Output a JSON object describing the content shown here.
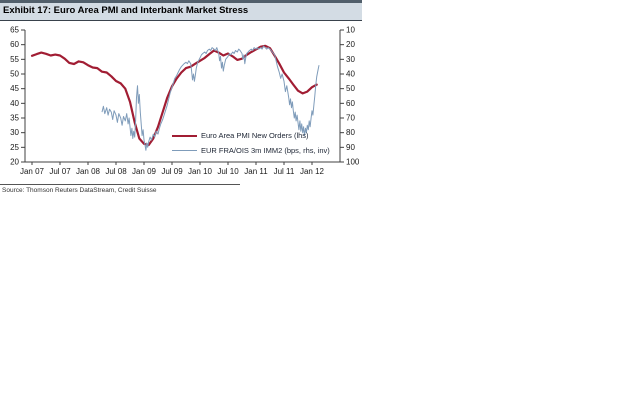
{
  "header": {
    "title": "Exhibit 17: Euro Area PMI and Interbank Market Stress"
  },
  "source": "Source: Thomson Reuters DataStream, Credit Suisse",
  "colors": {
    "pmi_line": "#a11d33",
    "fraois_line": "#7f9cba",
    "axis": "#404040",
    "header_band": "#515f6b",
    "header_bg": "#d3dce4"
  },
  "chart_data": {
    "type": "line",
    "title": "Euro Area PMI and Interbank Market Stress",
    "grid": false,
    "legend_position": "inside-lower-middle",
    "x_axis": {
      "tick_labels": [
        "Jan 07",
        "Jul 07",
        "Jan 08",
        "Jul 08",
        "Jan 09",
        "Jul 09",
        "Jan 10",
        "Jul 10",
        "Jan 11",
        "Jul 11",
        "Jan 12"
      ],
      "tick_month_index": [
        0,
        6,
        12,
        18,
        24,
        30,
        36,
        42,
        48,
        54,
        60
      ]
    },
    "left_axis": {
      "ticks": [
        65,
        60,
        55,
        50,
        45,
        40,
        35,
        30,
        25,
        20
      ],
      "range": [
        20,
        65
      ]
    },
    "right_axis": {
      "ticks": [
        10,
        20,
        30,
        40,
        50,
        60,
        70,
        80,
        90,
        100
      ],
      "range": [
        10,
        100
      ],
      "inverted": true
    },
    "series": [
      {
        "name": "Euro Area PMI New Orders (lhs)",
        "axis": "left",
        "color": "#a11d33",
        "stroke_width": 2.2,
        "start_month": 0,
        "monthly_values": [
          56.2,
          56.8,
          57.3,
          56.9,
          56.3,
          56.6,
          56.3,
          55.2,
          53.8,
          53.4,
          54.3,
          54.0,
          53.0,
          52.2,
          52.0,
          50.8,
          50.5,
          49.2,
          47.6,
          46.8,
          45.0,
          40.5,
          33.5,
          28.0,
          26.2,
          25.8,
          28.0,
          32.0,
          37.0,
          42.0,
          45.8,
          48.5,
          50.5,
          52.0,
          52.5,
          53.5,
          54.5,
          55.5,
          56.8,
          58.0,
          57.3,
          56.3,
          57.0,
          56.0,
          54.8,
          55.2,
          56.5,
          57.5,
          58.4,
          59.3,
          59.6,
          58.8,
          56.2,
          53.5,
          50.5,
          48.5,
          46.4,
          44.3,
          43.4,
          44.0,
          45.5,
          46.4
        ]
      },
      {
        "name": "EUR FRA/OIS 3m IMM2 (bps, rhs, inv)",
        "axis": "right",
        "color": "#7f9cba",
        "stroke_width": 1,
        "points": [
          [
            15,
            66
          ],
          [
            15.3,
            62
          ],
          [
            15.6,
            67
          ],
          [
            16,
            63
          ],
          [
            16.3,
            68
          ],
          [
            16.6,
            64
          ],
          [
            17,
            66
          ],
          [
            17.3,
            71
          ],
          [
            17.6,
            65
          ],
          [
            18,
            68
          ],
          [
            18.3,
            73
          ],
          [
            18.6,
            67
          ],
          [
            19,
            70
          ],
          [
            19.3,
            75
          ],
          [
            19.6,
            69
          ],
          [
            20,
            72
          ],
          [
            20.3,
            67
          ],
          [
            20.6,
            74
          ],
          [
            20.8,
            70
          ],
          [
            21,
            76
          ],
          [
            21.2,
            82
          ],
          [
            21.4,
            77
          ],
          [
            21.6,
            84
          ],
          [
            21.8,
            79
          ],
          [
            22,
            83
          ],
          [
            22.2,
            72
          ],
          [
            22.4,
            56
          ],
          [
            22.6,
            48
          ],
          [
            22.8,
            60
          ],
          [
            23,
            54
          ],
          [
            23.2,
            66
          ],
          [
            23.4,
            74
          ],
          [
            23.6,
            82
          ],
          [
            23.8,
            78
          ],
          [
            24,
            85
          ],
          [
            24.2,
            88
          ],
          [
            24.4,
            92
          ],
          [
            24.6,
            87
          ],
          [
            24.8,
            90
          ],
          [
            25,
            86
          ],
          [
            25.3,
            83
          ],
          [
            25.6,
            85
          ],
          [
            26,
            81
          ],
          [
            26.3,
            83
          ],
          [
            26.6,
            79
          ],
          [
            27,
            81
          ],
          [
            27.3,
            77
          ],
          [
            27.6,
            74
          ],
          [
            28,
            71
          ],
          [
            28.3,
            68
          ],
          [
            28.6,
            65
          ],
          [
            29,
            61
          ],
          [
            29.3,
            57
          ],
          [
            29.6,
            53
          ],
          [
            30,
            49
          ],
          [
            30.3,
            46
          ],
          [
            30.6,
            43
          ],
          [
            31,
            41
          ],
          [
            31.3,
            39
          ],
          [
            31.6,
            37
          ],
          [
            32,
            35
          ],
          [
            32.3,
            34
          ],
          [
            32.6,
            33
          ],
          [
            33,
            32
          ],
          [
            33.3,
            33
          ],
          [
            33.6,
            31
          ],
          [
            34,
            33
          ],
          [
            34.2,
            38
          ],
          [
            34.4,
            44
          ],
          [
            34.6,
            40
          ],
          [
            34.8,
            45
          ],
          [
            35,
            41
          ],
          [
            35.2,
            36
          ],
          [
            35.5,
            32
          ],
          [
            36,
            29
          ],
          [
            36.3,
            27
          ],
          [
            36.6,
            26
          ],
          [
            37,
            25
          ],
          [
            37.3,
            26
          ],
          [
            37.6,
            24
          ],
          [
            38,
            23
          ],
          [
            38.3,
            24
          ],
          [
            38.6,
            22
          ],
          [
            39,
            23
          ],
          [
            39.3,
            24
          ],
          [
            39.6,
            22
          ],
          [
            40,
            26
          ],
          [
            40.2,
            31
          ],
          [
            40.4,
            28
          ],
          [
            40.6,
            36
          ],
          [
            40.8,
            32
          ],
          [
            41,
            38
          ],
          [
            41.2,
            34
          ],
          [
            41.5,
            30
          ],
          [
            42,
            28
          ],
          [
            42.3,
            26
          ],
          [
            42.6,
            27
          ],
          [
            43,
            25
          ],
          [
            43.3,
            26
          ],
          [
            43.6,
            24
          ],
          [
            44,
            25
          ],
          [
            44.3,
            23
          ],
          [
            44.6,
            24
          ],
          [
            45,
            26
          ],
          [
            45.2,
            30
          ],
          [
            45.4,
            27
          ],
          [
            45.6,
            33
          ],
          [
            45.8,
            29
          ],
          [
            46,
            26
          ],
          [
            46.3,
            25
          ],
          [
            46.6,
            24
          ],
          [
            47,
            23
          ],
          [
            47.3,
            24
          ],
          [
            47.6,
            22
          ],
          [
            48,
            23
          ],
          [
            48.3,
            22
          ],
          [
            48.6,
            23
          ],
          [
            49,
            22
          ],
          [
            49.3,
            23
          ],
          [
            49.6,
            21
          ],
          [
            50,
            22
          ],
          [
            50.3,
            23
          ],
          [
            50.6,
            22
          ],
          [
            51,
            23
          ],
          [
            51.5,
            25
          ],
          [
            52,
            27
          ],
          [
            52.3,
            31
          ],
          [
            52.6,
            35
          ],
          [
            53,
            39
          ],
          [
            53.3,
            43
          ],
          [
            53.6,
            40
          ],
          [
            54,
            45
          ],
          [
            54.3,
            52
          ],
          [
            54.6,
            48
          ],
          [
            55,
            56
          ],
          [
            55.2,
            61
          ],
          [
            55.4,
            57
          ],
          [
            55.6,
            63
          ],
          [
            55.8,
            59
          ],
          [
            56,
            65
          ],
          [
            56.2,
            70
          ],
          [
            56.4,
            66
          ],
          [
            56.6,
            72
          ],
          [
            56.8,
            68
          ],
          [
            57,
            73
          ],
          [
            57.2,
            78
          ],
          [
            57.4,
            72
          ],
          [
            57.6,
            79
          ],
          [
            57.8,
            74
          ],
          [
            58,
            80
          ],
          [
            58.2,
            76
          ],
          [
            58.4,
            82
          ],
          [
            58.6,
            77
          ],
          [
            58.8,
            80
          ],
          [
            59,
            75
          ],
          [
            59.2,
            78
          ],
          [
            59.4,
            72
          ],
          [
            59.6,
            76
          ],
          [
            59.8,
            70
          ],
          [
            60,
            65
          ],
          [
            60.2,
            68
          ],
          [
            60.4,
            61
          ],
          [
            60.6,
            55
          ],
          [
            60.8,
            48
          ],
          [
            61,
            42
          ],
          [
            61.3,
            37
          ],
          [
            61.5,
            34
          ]
        ]
      }
    ]
  }
}
